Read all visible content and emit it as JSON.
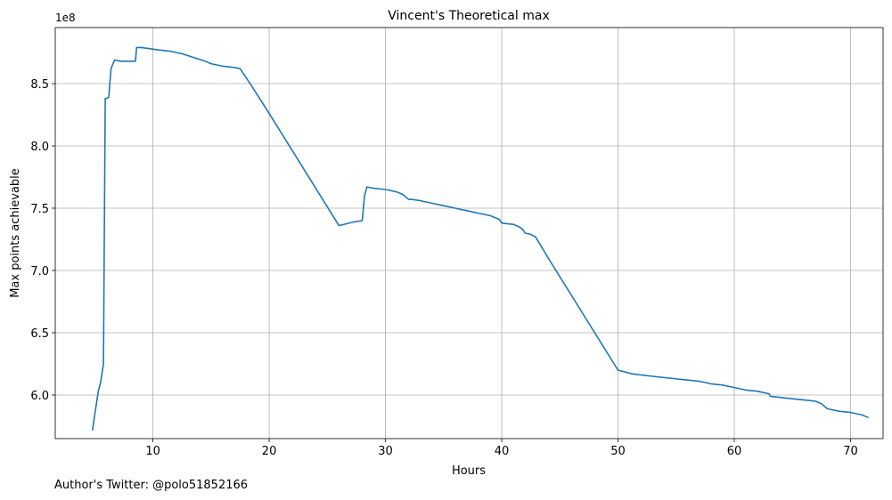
{
  "chart_data": {
    "type": "line",
    "title": "Vincent's Theoretical max",
    "xlabel": "Hours",
    "ylabel": "Max points achievable",
    "y_offset_label": "1e8",
    "xlim": [
      1.6,
      72.8
    ],
    "ylim": [
      5.65,
      8.95
    ],
    "grid": true,
    "x_ticks": [
      10,
      20,
      30,
      40,
      50,
      60,
      70
    ],
    "x_tick_labels": [
      "10",
      "20",
      "30",
      "40",
      "50",
      "60",
      "70"
    ],
    "y_ticks": [
      6.0,
      6.5,
      7.0,
      7.5,
      8.0,
      8.5
    ],
    "y_tick_labels": [
      "6.0",
      "6.5",
      "7.0",
      "7.5",
      "8.0",
      "8.5"
    ],
    "series": [
      {
        "color": "#1f77b4",
        "x": [
          4.8,
          5.3,
          5.5,
          5.75,
          5.9,
          6.0,
          6.2,
          6.4,
          6.7,
          7.2,
          8.0,
          8.5,
          8.6,
          9.0,
          9.8,
          10.5,
          11.5,
          12.5,
          13.5,
          14.5,
          15.0,
          15.5,
          16.0,
          17.0,
          17.5,
          18.5,
          20.0,
          22.0,
          24.0,
          26.0,
          27.3,
          28.0,
          28.2,
          28.4,
          29.0,
          30.0,
          31.0,
          31.5,
          32.0,
          32.3,
          33.0,
          34.0,
          35.0,
          36.0,
          37.0,
          38.0,
          39.0,
          39.8,
          40.0,
          41.0,
          41.5,
          41.8,
          42.0,
          42.5,
          42.9,
          44.0,
          46.0,
          48.0,
          50.0,
          51.2,
          53.0,
          54.0,
          56.0,
          57.0,
          58.0,
          59.0,
          60.0,
          61.0,
          62.0,
          63.0,
          63.1,
          64.0,
          66.0,
          67.0,
          67.5,
          68.0,
          69.0,
          70.0,
          71.0,
          71.5
        ],
        "y": [
          5.72,
          6.03,
          6.1,
          6.25,
          8.38,
          8.38,
          8.39,
          8.62,
          8.69,
          8.68,
          8.68,
          8.68,
          8.79,
          8.79,
          8.78,
          8.77,
          8.76,
          8.74,
          8.71,
          8.68,
          8.66,
          8.65,
          8.64,
          8.63,
          8.62,
          8.48,
          8.26,
          7.96,
          7.66,
          7.36,
          7.39,
          7.4,
          7.6,
          7.67,
          7.66,
          7.65,
          7.63,
          7.61,
          7.57,
          7.57,
          7.56,
          7.54,
          7.52,
          7.5,
          7.48,
          7.46,
          7.44,
          7.41,
          7.38,
          7.37,
          7.35,
          7.33,
          7.3,
          7.29,
          7.27,
          7.1,
          6.8,
          6.5,
          6.2,
          6.17,
          6.15,
          6.14,
          6.12,
          6.11,
          6.09,
          6.08,
          6.06,
          6.04,
          6.03,
          6.01,
          5.99,
          5.98,
          5.96,
          5.95,
          5.93,
          5.89,
          5.87,
          5.86,
          5.84,
          5.82
        ]
      }
    ]
  },
  "footer": {
    "credit": "Author's Twitter: @polo51852166"
  }
}
